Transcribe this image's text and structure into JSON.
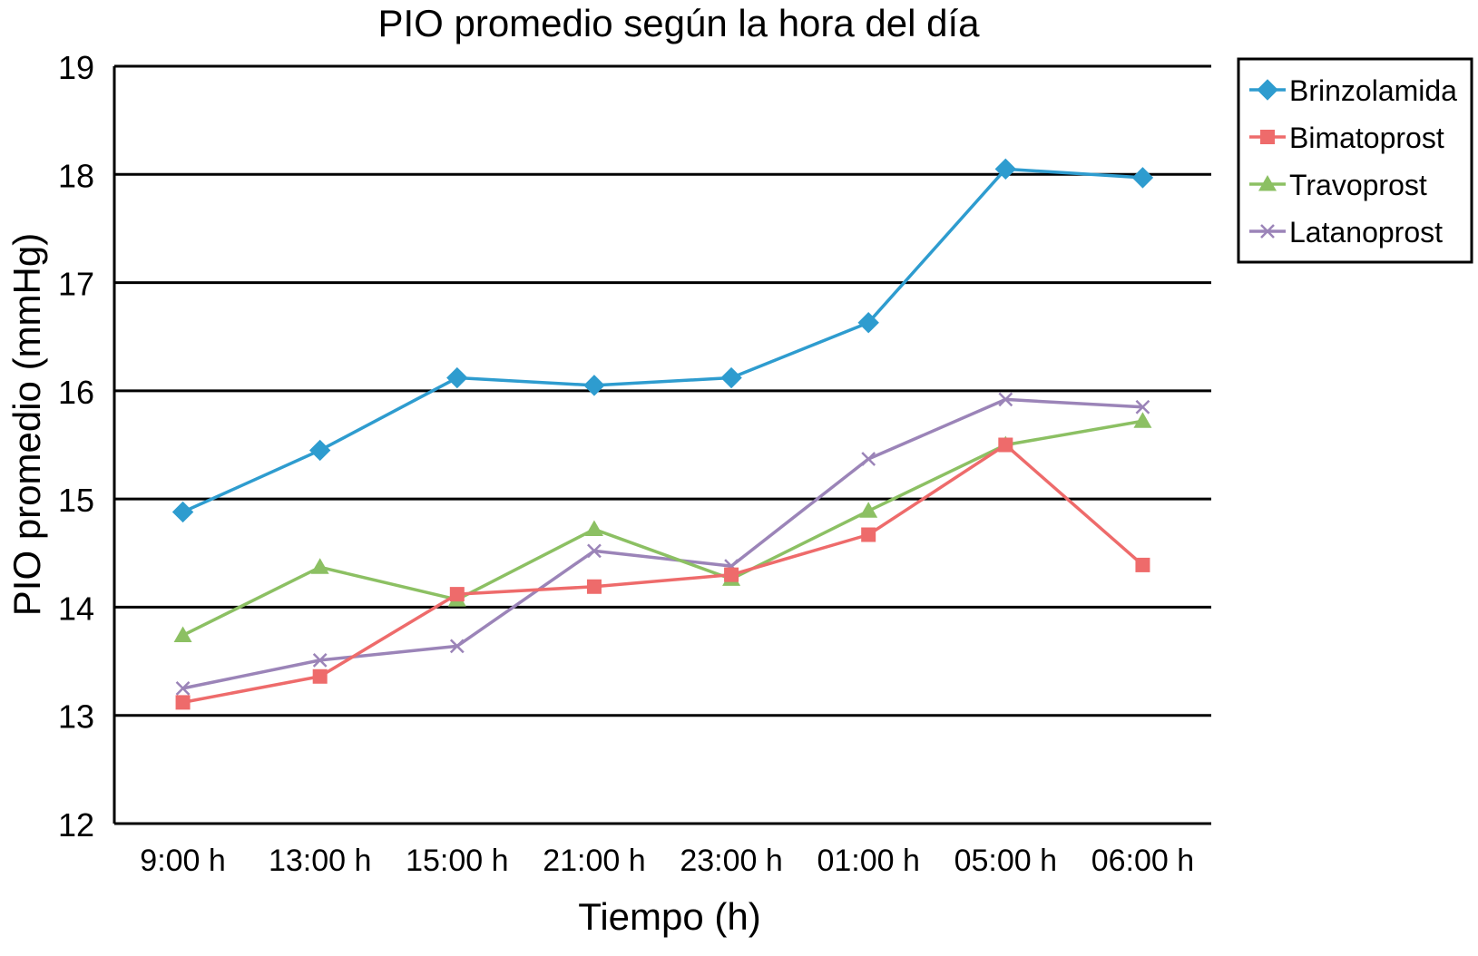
{
  "chart_data": {
    "type": "line",
    "title": "PIO promedio según la hora del día",
    "xlabel": "Tiempo (h)",
    "ylabel": "PIO promedio (mmHg)",
    "categories": [
      "9:00 h",
      "13:00 h",
      "15:00 h",
      "21:00 h",
      "23:00 h",
      "01:00 h",
      "05:00 h",
      "06:00 h"
    ],
    "ylim": [
      12,
      19
    ],
    "yticks": [
      "12",
      "13",
      "14",
      "15",
      "16",
      "17",
      "18",
      "19"
    ],
    "grid": "horizontal",
    "legend_position": "top-right",
    "series": [
      {
        "name": "Brinzolamida",
        "color": "#2E9CCF",
        "marker": "diamond",
        "values": [
          14.88,
          15.45,
          16.12,
          16.05,
          16.12,
          16.63,
          18.05,
          17.97
        ]
      },
      {
        "name": "Bimatoprost",
        "color": "#EE6B6B",
        "marker": "square",
        "values": [
          13.12,
          13.36,
          14.12,
          14.19,
          14.3,
          14.67,
          15.5,
          14.39
        ]
      },
      {
        "name": "Travoprost",
        "color": "#8CC063",
        "marker": "triangle",
        "values": [
          13.74,
          14.37,
          14.07,
          14.72,
          14.26,
          14.89,
          15.5,
          15.72
        ]
      },
      {
        "name": "Latanoprost",
        "color": "#9B84B8",
        "marker": "x",
        "values": [
          13.25,
          13.51,
          13.64,
          14.52,
          14.38,
          15.37,
          15.92,
          15.85
        ]
      }
    ]
  }
}
